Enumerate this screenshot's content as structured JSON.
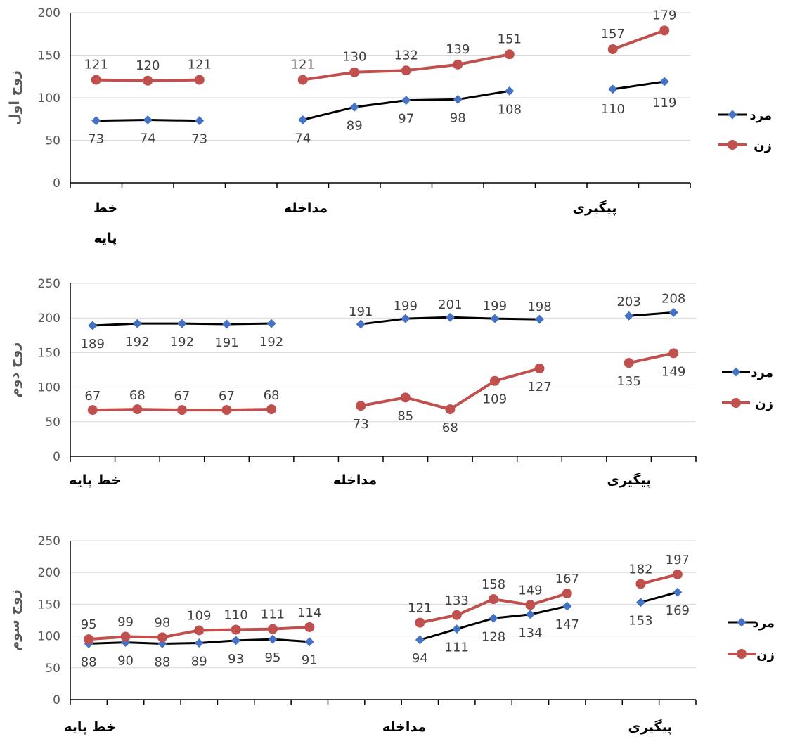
{
  "colors": {
    "men": "#000000",
    "men_marker": "#4472C4",
    "women": "#C0504D",
    "grid": "#D9D9D9",
    "axis": "#000000"
  },
  "chart_data": [
    {
      "type": "line",
      "ylabel": "زوج اول",
      "ylim": [
        0,
        200
      ],
      "yticks": [
        0,
        50,
        100,
        150,
        200
      ],
      "grid": true,
      "legend": "right",
      "num_slots": 12,
      "category_labels": [
        {
          "label": "خط",
          "label2": "پایه"
        },
        {
          "label": "مداخله"
        },
        {
          "label": "پیگیری"
        }
      ],
      "series": [
        {
          "name": "مرد",
          "marker": "diamond",
          "segments": [
            {
              "slots": [
                0,
                1,
                2
              ],
              "values": [
                73,
                74,
                73
              ]
            },
            {
              "slots": [
                4,
                5,
                6,
                7,
                8
              ],
              "values": [
                74,
                89,
                97,
                98,
                108
              ]
            },
            {
              "slots": [
                10,
                11
              ],
              "values": [
                110,
                119
              ]
            }
          ]
        },
        {
          "name": "زن",
          "marker": "circle",
          "segments": [
            {
              "slots": [
                0,
                1,
                2
              ],
              "values": [
                121,
                120,
                121
              ]
            },
            {
              "slots": [
                4,
                5,
                6,
                7,
                8
              ],
              "values": [
                121,
                130,
                132,
                139,
                151
              ]
            },
            {
              "slots": [
                10,
                11
              ],
              "values": [
                157,
                179
              ]
            }
          ]
        }
      ]
    },
    {
      "type": "line",
      "ylabel": "زوج دوم",
      "ylim": [
        0,
        250
      ],
      "yticks": [
        0,
        50,
        100,
        150,
        200,
        250
      ],
      "grid": true,
      "legend": "right",
      "num_slots": 14,
      "category_labels": [
        {
          "label": "خط پایه"
        },
        {
          "label": "مداخله"
        },
        {
          "label": "پیگیری"
        }
      ],
      "series": [
        {
          "name": "مرد",
          "marker": "diamond",
          "segments": [
            {
              "slots": [
                0,
                1,
                2,
                3,
                4
              ],
              "values": [
                189,
                192,
                192,
                191,
                192
              ]
            },
            {
              "slots": [
                6,
                7,
                8,
                9,
                10
              ],
              "values": [
                191,
                199,
                201,
                199,
                198
              ]
            },
            {
              "slots": [
                12,
                13
              ],
              "values": [
                203,
                208
              ]
            }
          ]
        },
        {
          "name": "زن",
          "marker": "circle",
          "segments": [
            {
              "slots": [
                0,
                1,
                2,
                3,
                4
              ],
              "values": [
                67,
                68,
                67,
                67,
                68
              ]
            },
            {
              "slots": [
                6,
                7,
                8,
                9,
                10
              ],
              "values": [
                73,
                85,
                68,
                109,
                127
              ]
            },
            {
              "slots": [
                12,
                13
              ],
              "values": [
                135,
                149
              ]
            }
          ]
        }
      ]
    },
    {
      "type": "line",
      "ylabel": "زوج سوم",
      "ylim": [
        0,
        250
      ],
      "yticks": [
        0,
        50,
        100,
        150,
        200,
        250
      ],
      "grid": true,
      "legend": "right",
      "num_slots": 17,
      "category_labels": [
        {
          "label": "خط پایه"
        },
        {
          "label": "مداخله"
        },
        {
          "label": "پیگیری"
        }
      ],
      "series": [
        {
          "name": "مرد",
          "marker": "diamond",
          "segments": [
            {
              "slots": [
                0,
                1,
                2,
                3,
                4,
                5,
                6
              ],
              "values": [
                88,
                90,
                88,
                89,
                93,
                95,
                91
              ]
            },
            {
              "slots": [
                9,
                10,
                11,
                12,
                13
              ],
              "values": [
                94,
                111,
                128,
                134,
                147
              ]
            },
            {
              "slots": [
                15,
                16
              ],
              "values": [
                153,
                169
              ]
            }
          ]
        },
        {
          "name": "زن",
          "marker": "circle",
          "segments": [
            {
              "slots": [
                0,
                1,
                2,
                3,
                4,
                5,
                6
              ],
              "values": [
                95,
                99,
                98,
                109,
                110,
                111,
                114
              ]
            },
            {
              "slots": [
                9,
                10,
                11,
                12,
                13
              ],
              "values": [
                121,
                133,
                158,
                149,
                167
              ]
            },
            {
              "slots": [
                15,
                16
              ],
              "values": [
                182,
                197
              ]
            }
          ]
        }
      ]
    }
  ]
}
